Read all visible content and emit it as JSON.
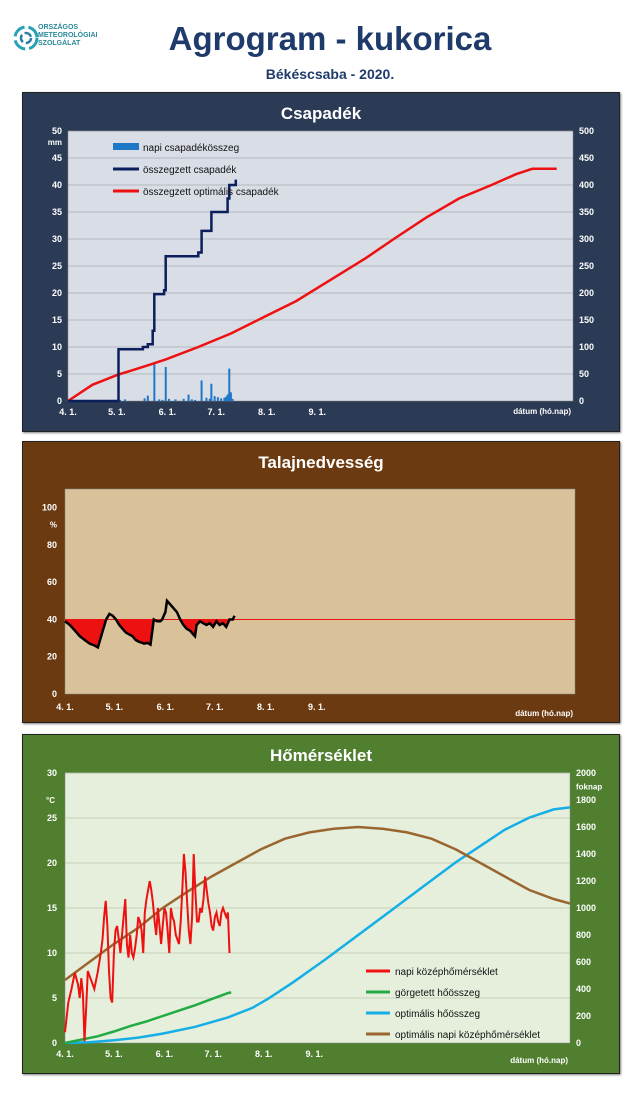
{
  "header": {
    "org_line1": "ORSZÁGOS",
    "org_line2": "METEOROLÓGIAI",
    "org_line3": "SZOLGÁLAT",
    "title": "Agrogram - kukorica",
    "subtitle": "Békéscsaba - 2020."
  },
  "colors": {
    "precip_panel_bg": "#2b3a55",
    "precip_plot_bg": "#d9dde6",
    "soil_panel_bg": "#6b3a10",
    "soil_plot_bg": "#d9c199",
    "temp_panel_bg": "#4f7f2f",
    "temp_plot_bg": "#e6efdc",
    "daily_precip": "#1f77c8",
    "cum_precip": "#0b1f5c",
    "opt_precip": "#ee1111",
    "soil_line": "#000000",
    "soil_ref": "#ee1111",
    "daily_temp": "#ee1111",
    "rolling_heat": "#22aa44",
    "opt_heat": "#16aee6",
    "opt_daily_temp": "#9a6630"
  },
  "chart_data": [
    {
      "type": "bar",
      "title": "Csapadék",
      "ylabel": "mm",
      "y2label": "",
      "xlabel": "dátum (hó.nap)",
      "x_ticks": [
        "4. 1.",
        "5. 1.",
        "6. 1.",
        "7. 1.",
        "8. 1.",
        "9. 1."
      ],
      "y_ticks": [
        "0",
        "5",
        "10",
        "15",
        "20",
        "25",
        "30",
        "35",
        "40",
        "45",
        "50"
      ],
      "y2_ticks": [
        "0",
        "50",
        "100",
        "150",
        "200",
        "250",
        "300",
        "350",
        "400",
        "450",
        "500"
      ],
      "ylim": [
        0,
        50
      ],
      "y2lim": [
        0,
        500
      ],
      "legend": [
        "napi csapadékösszeg",
        "összegzett csapadék",
        "összegzett optimális csapadék"
      ],
      "legend_position": "top-left",
      "grid": true,
      "daily": [
        [
          31,
          9.6
        ],
        [
          32,
          0.2
        ],
        [
          35,
          0.3
        ],
        [
          47,
          0.5
        ],
        [
          49,
          1.0
        ],
        [
          53,
          6.8
        ],
        [
          56,
          0.3
        ],
        [
          58,
          0.2
        ],
        [
          60,
          6.3
        ],
        [
          62,
          0.4
        ],
        [
          66,
          0.3
        ],
        [
          71,
          0.4
        ],
        [
          74,
          1.2
        ],
        [
          76,
          0.3
        ],
        [
          78,
          0.2
        ],
        [
          82,
          3.8
        ],
        [
          85,
          0.6
        ],
        [
          87,
          0.4
        ],
        [
          88,
          3.2
        ],
        [
          90,
          0.9
        ],
        [
          92,
          0.7
        ],
        [
          94,
          0.5
        ],
        [
          96,
          0.6
        ],
        [
          97,
          0.8
        ],
        [
          98,
          1.2
        ],
        [
          99,
          6.0
        ],
        [
          100,
          1.6
        ],
        [
          101,
          0.4
        ]
      ],
      "cumulative": [
        [
          0,
          0
        ],
        [
          30,
          0
        ],
        [
          31,
          9.6
        ],
        [
          46,
          10
        ],
        [
          49,
          10.5
        ],
        [
          52,
          13
        ],
        [
          53,
          19.8
        ],
        [
          59,
          20.5
        ],
        [
          60,
          26.8
        ],
        [
          80,
          27.5
        ],
        [
          82,
          31.5
        ],
        [
          88,
          35
        ],
        [
          98,
          37.5
        ],
        [
          99,
          40
        ],
        [
          103,
          41
        ]
      ],
      "optimal_cumulative": [
        [
          0,
          0
        ],
        [
          15,
          30
        ],
        [
          30,
          48
        ],
        [
          50,
          67
        ],
        [
          60,
          77
        ],
        [
          80,
          100
        ],
        [
          100,
          125
        ],
        [
          120,
          155
        ],
        [
          140,
          185
        ],
        [
          160,
          222
        ],
        [
          183,
          265
        ],
        [
          200,
          300
        ],
        [
          220,
          340
        ],
        [
          240,
          375
        ],
        [
          260,
          400
        ],
        [
          275,
          420
        ],
        [
          285,
          430
        ],
        [
          300,
          430
        ]
      ]
    },
    {
      "type": "area",
      "title": "Talajnedvesség",
      "ylabel": "%",
      "xlabel": "dátum (hó.nap)",
      "x_ticks": [
        "4. 1.",
        "5. 1.",
        "6. 1.",
        "7. 1.",
        "8. 1.",
        "9. 1."
      ],
      "y_ticks": [
        "0",
        "20",
        "40",
        "60",
        "80",
        "100"
      ],
      "ylim": [
        0,
        110
      ],
      "reference": 40,
      "grid": false,
      "values": [
        [
          0,
          39
        ],
        [
          3,
          37
        ],
        [
          6,
          34
        ],
        [
          9,
          31
        ],
        [
          12,
          29
        ],
        [
          15,
          27
        ],
        [
          18,
          26
        ],
        [
          20,
          25
        ],
        [
          23,
          34
        ],
        [
          25,
          40
        ],
        [
          27,
          43
        ],
        [
          29,
          42
        ],
        [
          31,
          40
        ],
        [
          33,
          37
        ],
        [
          35,
          35
        ],
        [
          37,
          33
        ],
        [
          39,
          32
        ],
        [
          41,
          31
        ],
        [
          43,
          29
        ],
        [
          45,
          28
        ],
        [
          47,
          27.5
        ],
        [
          48,
          27
        ],
        [
          50,
          27.5
        ],
        [
          51,
          27
        ],
        [
          52,
          26.5
        ],
        [
          54,
          40
        ],
        [
          56,
          39
        ],
        [
          58,
          39
        ],
        [
          59,
          40
        ],
        [
          61,
          44
        ],
        [
          62,
          50
        ],
        [
          64,
          48
        ],
        [
          66,
          46
        ],
        [
          68,
          44
        ],
        [
          70,
          40
        ],
        [
          72,
          37
        ],
        [
          74,
          35
        ],
        [
          76,
          34
        ],
        [
          78,
          32
        ],
        [
          79,
          31
        ],
        [
          80,
          37
        ],
        [
          82,
          39
        ],
        [
          84,
          38
        ],
        [
          86,
          37
        ],
        [
          88,
          38
        ],
        [
          90,
          36
        ],
        [
          92,
          39
        ],
        [
          94,
          37
        ],
        [
          96,
          38
        ],
        [
          98,
          36
        ],
        [
          100,
          40
        ],
        [
          102,
          40
        ],
        [
          103,
          42
        ]
      ]
    },
    {
      "type": "line",
      "title": "Hőmérséklet",
      "ylabel": "°C",
      "y2label": "foknap",
      "xlabel": "dátum (hó.nap)",
      "x_ticks": [
        "4. 1.",
        "5. 1.",
        "6. 1.",
        "7. 1.",
        "8. 1.",
        "9. 1."
      ],
      "y_ticks": [
        "0",
        "5",
        "10",
        "15",
        "20",
        "25",
        "30"
      ],
      "y2_ticks": [
        "0",
        "200",
        "400",
        "600",
        "800",
        "1000",
        "1200",
        "1400",
        "1600",
        "1800",
        "2000"
      ],
      "ylim": [
        0,
        30
      ],
      "y2lim": [
        0,
        2000
      ],
      "legend": [
        "napi középhőmérséklet",
        "görgetett hőösszeg",
        "optimális hőösszeg",
        "optimális napi középhőmérséklet"
      ],
      "legend_position": "bottom-right",
      "grid": true,
      "daily_mean_temp": [
        [
          0,
          1.2
        ],
        [
          2,
          4.5
        ],
        [
          4,
          6.0
        ],
        [
          6,
          7.8
        ],
        [
          8,
          6.5
        ],
        [
          9,
          5.0
        ],
        [
          10,
          7.2
        ],
        [
          11,
          5.5
        ],
        [
          12,
          0.2
        ],
        [
          13,
          4.0
        ],
        [
          14,
          8.0
        ],
        [
          15,
          7.5
        ],
        [
          16,
          7.0
        ],
        [
          18,
          6.0
        ],
        [
          20,
          7.8
        ],
        [
          22,
          10.0
        ],
        [
          23,
          11.5
        ],
        [
          24,
          14.0
        ],
        [
          25,
          15.8
        ],
        [
          26,
          13.0
        ],
        [
          27,
          8.0
        ],
        [
          28,
          5.0
        ],
        [
          29,
          4.5
        ],
        [
          30,
          10.0
        ],
        [
          31,
          12.5
        ],
        [
          32,
          13.0
        ],
        [
          33,
          11.5
        ],
        [
          34,
          10.0
        ],
        [
          35,
          12.0
        ],
        [
          36,
          14.0
        ],
        [
          37,
          16.0
        ],
        [
          38,
          11.0
        ],
        [
          39,
          9.5
        ],
        [
          40,
          12.0
        ],
        [
          41,
          10.0
        ],
        [
          42,
          9.5
        ],
        [
          43,
          10.5
        ],
        [
          44,
          12.0
        ],
        [
          45,
          14.0
        ],
        [
          46,
          13.5
        ],
        [
          47,
          12.5
        ],
        [
          48,
          10.0
        ],
        [
          49,
          14.5
        ],
        [
          50,
          16.0
        ],
        [
          51,
          17.0
        ],
        [
          52,
          18.0
        ],
        [
          53,
          17.0
        ],
        [
          54,
          15.5
        ],
        [
          55,
          13.5
        ],
        [
          56,
          12.0
        ],
        [
          57,
          15.0
        ],
        [
          58,
          13.0
        ],
        [
          59,
          11.0
        ],
        [
          60,
          13.0
        ],
        [
          61,
          15.0
        ],
        [
          62,
          14.5
        ],
        [
          63,
          12.5
        ],
        [
          64,
          10.0
        ],
        [
          65,
          15.0
        ],
        [
          66,
          14.0
        ],
        [
          67,
          13.5
        ],
        [
          68,
          12.0
        ],
        [
          69,
          11.5
        ],
        [
          70,
          11.0
        ],
        [
          71,
          13.5
        ],
        [
          72,
          17.0
        ],
        [
          73,
          21.0
        ],
        [
          74,
          19.0
        ],
        [
          75,
          15.5
        ],
        [
          76,
          12.5
        ],
        [
          77,
          11.0
        ],
        [
          78,
          14.0
        ],
        [
          79,
          21.0
        ],
        [
          80,
          17.0
        ],
        [
          81,
          13.5
        ],
        [
          82,
          13.5
        ],
        [
          83,
          15.0
        ],
        [
          84,
          14.5
        ],
        [
          85,
          16.0
        ],
        [
          86,
          18.5
        ],
        [
          87,
          17.0
        ],
        [
          88,
          15.5
        ],
        [
          89,
          14.5
        ],
        [
          90,
          13.0
        ],
        [
          91,
          12.5
        ],
        [
          92,
          14.0
        ],
        [
          93,
          14.5
        ],
        [
          94,
          13.5
        ],
        [
          95,
          13.0
        ],
        [
          96,
          14.5
        ],
        [
          97,
          15.0
        ],
        [
          98,
          14.5
        ],
        [
          99,
          14.0
        ],
        [
          100,
          14.5
        ],
        [
          101,
          10.0
        ]
      ],
      "rolling_heat_sum": [
        [
          0,
          0
        ],
        [
          10,
          25
        ],
        [
          20,
          50
        ],
        [
          30,
          85
        ],
        [
          40,
          125
        ],
        [
          50,
          160
        ],
        [
          60,
          200
        ],
        [
          70,
          240
        ],
        [
          80,
          280
        ],
        [
          90,
          325
        ],
        [
          100,
          370
        ],
        [
          102,
          375
        ]
      ],
      "optimal_heat_sum": [
        [
          0,
          0
        ],
        [
          15,
          5
        ],
        [
          30,
          20
        ],
        [
          45,
          40
        ],
        [
          60,
          70
        ],
        [
          80,
          120
        ],
        [
          100,
          190
        ],
        [
          115,
          260
        ],
        [
          125,
          330
        ],
        [
          140,
          450
        ],
        [
          160,
          620
        ],
        [
          180,
          800
        ],
        [
          200,
          980
        ],
        [
          220,
          1160
        ],
        [
          240,
          1340
        ],
        [
          255,
          1460
        ],
        [
          270,
          1580
        ],
        [
          285,
          1670
        ],
        [
          300,
          1730
        ],
        [
          310,
          1745
        ]
      ],
      "optimal_daily_temp": [
        [
          0,
          7.0
        ],
        [
          15,
          9.0
        ],
        [
          30,
          11.0
        ],
        [
          45,
          12.8
        ],
        [
          60,
          15.0
        ],
        [
          75,
          16.8
        ],
        [
          90,
          18.5
        ],
        [
          105,
          20.0
        ],
        [
          120,
          21.5
        ],
        [
          135,
          22.7
        ],
        [
          150,
          23.4
        ],
        [
          165,
          23.8
        ],
        [
          180,
          24.0
        ],
        [
          195,
          23.8
        ],
        [
          210,
          23.4
        ],
        [
          225,
          22.7
        ],
        [
          240,
          21.5
        ],
        [
          255,
          20.0
        ],
        [
          270,
          18.5
        ],
        [
          285,
          17.0
        ],
        [
          300,
          16.0
        ],
        [
          310,
          15.5
        ]
      ]
    }
  ]
}
